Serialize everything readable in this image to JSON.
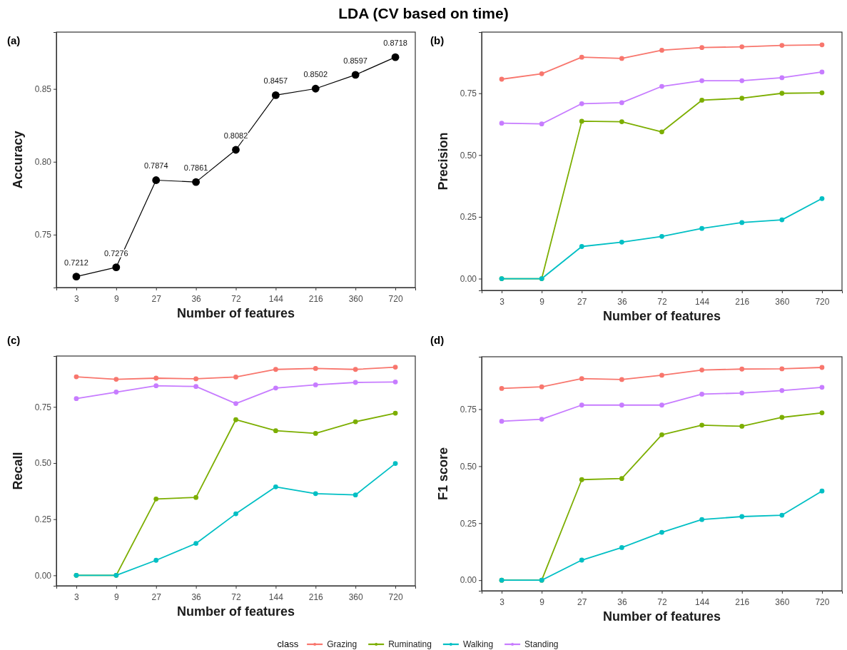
{
  "chart_data": [
    {
      "type": "line",
      "title": "LDA (CV based on time)",
      "annotations": [
        "(a)"
      ],
      "xlabel": "Number of features",
      "ylabel": "Accuracy",
      "categories": [
        "3",
        "9",
        "27",
        "36",
        "72",
        "144",
        "216",
        "360",
        "720"
      ],
      "ylim": [
        0.7137,
        0.889
      ],
      "yticks": [
        0.75,
        {
          "value": 0.8,
          "label": "0.80"
        },
        0.85
      ],
      "marker": "circle",
      "data_labels": true,
      "series": [
        {
          "color": "#000000",
          "values": [
            0.7212,
            0.7276,
            0.7874,
            0.7861,
            0.8082,
            0.8457,
            0.8502,
            0.8597,
            0.8718
          ]
        }
      ]
    },
    {
      "type": "line",
      "annotations": [
        "(b)"
      ],
      "xlabel": "Number of features",
      "ylabel": "Precision",
      "categories": [
        "3",
        "9",
        "27",
        "36",
        "72",
        "144",
        "216",
        "360",
        "720"
      ],
      "ylim": [
        -0.0475,
        0.9975
      ],
      "yticks": [
        {
          "value": 0,
          "label": "0.00"
        },
        0.25,
        {
          "value": 0.5,
          "label": "0.50"
        },
        0.75
      ],
      "marker": "circle",
      "series": [
        {
          "color": "#f8766d",
          "values": [
            0.807,
            0.829,
            0.896,
            0.891,
            0.924,
            0.935,
            0.938,
            0.944,
            0.946
          ]
        },
        {
          "color": "#7cae00",
          "values": [
            0,
            0,
            0.637,
            0.635,
            0.594,
            0.722,
            0.73,
            0.75,
            0.752
          ]
        },
        {
          "color": "#00bfc4",
          "values": [
            0,
            0,
            0.13,
            0.148,
            0.171,
            0.203,
            0.227,
            0.238,
            0.324
          ]
        },
        {
          "color": "#c77cff",
          "values": [
            0.629,
            0.626,
            0.708,
            0.712,
            0.778,
            0.801,
            0.801,
            0.813,
            0.836
          ]
        }
      ]
    },
    {
      "type": "line",
      "annotations": [
        "(c)"
      ],
      "xlabel": "Number of features",
      "ylabel": "Recall",
      "categories": [
        "3",
        "9",
        "27",
        "36",
        "72",
        "144",
        "216",
        "360",
        "720"
      ],
      "ylim": [
        -0.0465,
        0.9765
      ],
      "yticks": [
        {
          "value": 0,
          "label": "0.00"
        },
        0.25,
        {
          "value": 0.5,
          "label": "0.50"
        },
        0.75
      ],
      "marker": "circle",
      "series": [
        {
          "color": "#f8766d",
          "values": [
            0.884,
            0.873,
            0.878,
            0.875,
            0.883,
            0.917,
            0.921,
            0.917,
            0.927
          ]
        },
        {
          "color": "#7cae00",
          "values": [
            0,
            0,
            0.34,
            0.347,
            0.693,
            0.644,
            0.632,
            0.684,
            0.722
          ]
        },
        {
          "color": "#00bfc4",
          "values": [
            0,
            0,
            0.067,
            0.142,
            0.274,
            0.394,
            0.364,
            0.358,
            0.498
          ]
        },
        {
          "color": "#c77cff",
          "values": [
            0.787,
            0.816,
            0.844,
            0.841,
            0.765,
            0.834,
            0.848,
            0.859,
            0.861
          ]
        }
      ]
    },
    {
      "type": "line",
      "annotations": [
        "(d)"
      ],
      "xlabel": "Number of features",
      "ylabel": "F1 score",
      "categories": [
        "3",
        "9",
        "27",
        "36",
        "72",
        "144",
        "216",
        "360",
        "720"
      ],
      "ylim": [
        -0.0465,
        0.98
      ],
      "yticks": [
        {
          "value": 0,
          "label": "0.00"
        },
        0.25,
        {
          "value": 0.5,
          "label": "0.50"
        },
        0.75
      ],
      "marker": "circle",
      "legend": "bottom",
      "legend_title": "class",
      "series": [
        {
          "name": "Grazing",
          "color": "#f8766d",
          "values": [
            0.841,
            0.848,
            0.884,
            0.88,
            0.899,
            0.922,
            0.926,
            0.927,
            0.933
          ]
        },
        {
          "name": "Ruminating",
          "color": "#7cae00",
          "values": [
            0,
            0,
            0.441,
            0.446,
            0.638,
            0.68,
            0.675,
            0.714,
            0.734
          ]
        },
        {
          "name": "Walking",
          "color": "#00bfc4",
          "values": [
            0,
            0,
            0.088,
            0.143,
            0.21,
            0.266,
            0.279,
            0.285,
            0.391
          ]
        },
        {
          "name": "Standing",
          "color": "#c77cff",
          "values": [
            0.697,
            0.706,
            0.768,
            0.768,
            0.768,
            0.816,
            0.821,
            0.832,
            0.846
          ]
        }
      ]
    }
  ]
}
